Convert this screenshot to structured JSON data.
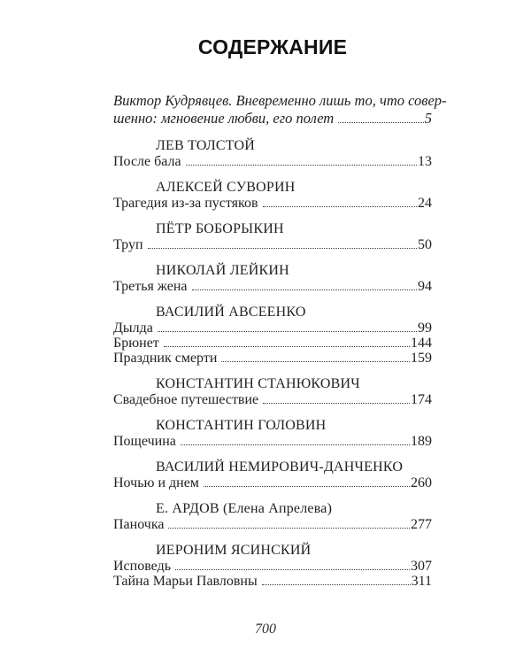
{
  "page": {
    "title": "СОДЕРЖАНИЕ",
    "footer_page_number": "700",
    "colors": {
      "background": "#ffffff",
      "text": "#222222"
    }
  },
  "intro": {
    "line1": "Виктор Кудрявцев. Вневременно лишь то, что совер-",
    "line2": "шенно: мгновение любви, его полет",
    "page": "5"
  },
  "sections": [
    {
      "author": "ЛЕВ ТОЛСТОЙ",
      "entries": [
        {
          "title": "После бала",
          "page": "13"
        }
      ]
    },
    {
      "author": "АЛЕКСЕЙ СУВОРИН",
      "entries": [
        {
          "title": "Трагедия из-за пустяков",
          "page": "24"
        }
      ]
    },
    {
      "author": "ПЁТР БОБОРЫКИН",
      "entries": [
        {
          "title": "Труп",
          "page": "50"
        }
      ]
    },
    {
      "author": "НИКОЛАЙ ЛЕЙКИН",
      "entries": [
        {
          "title": "Третья жена",
          "page": "94"
        }
      ]
    },
    {
      "author": "ВАСИЛИЙ АВСЕЕНКО",
      "entries": [
        {
          "title": "Дылда",
          "page": "99"
        },
        {
          "title": "Брюнет",
          "page": "144"
        },
        {
          "title": "Праздник смерти",
          "page": "159"
        }
      ]
    },
    {
      "author": "КОНСТАНТИН СТАНЮКОВИЧ",
      "entries": [
        {
          "title": "Свадебное путешествие",
          "page": "174"
        }
      ]
    },
    {
      "author": "КОНСТАНТИН ГОЛОВИН",
      "entries": [
        {
          "title": "Пощечина",
          "page": "189"
        }
      ]
    },
    {
      "author": "ВАСИЛИЙ НЕМИРОВИЧ-ДАНЧЕНКО",
      "entries": [
        {
          "title": "Ночью и днем",
          "page": "260"
        }
      ]
    },
    {
      "author": "Е. АРДОВ (Елена Апрелева)",
      "entries": [
        {
          "title": "Паночка",
          "page": "277"
        }
      ]
    },
    {
      "author": "ИЕРОНИМ ЯСИНСКИЙ",
      "entries": [
        {
          "title": "Исповедь",
          "page": "307"
        },
        {
          "title": "Тайна Марьи Павловны",
          "page": "311"
        }
      ]
    }
  ]
}
